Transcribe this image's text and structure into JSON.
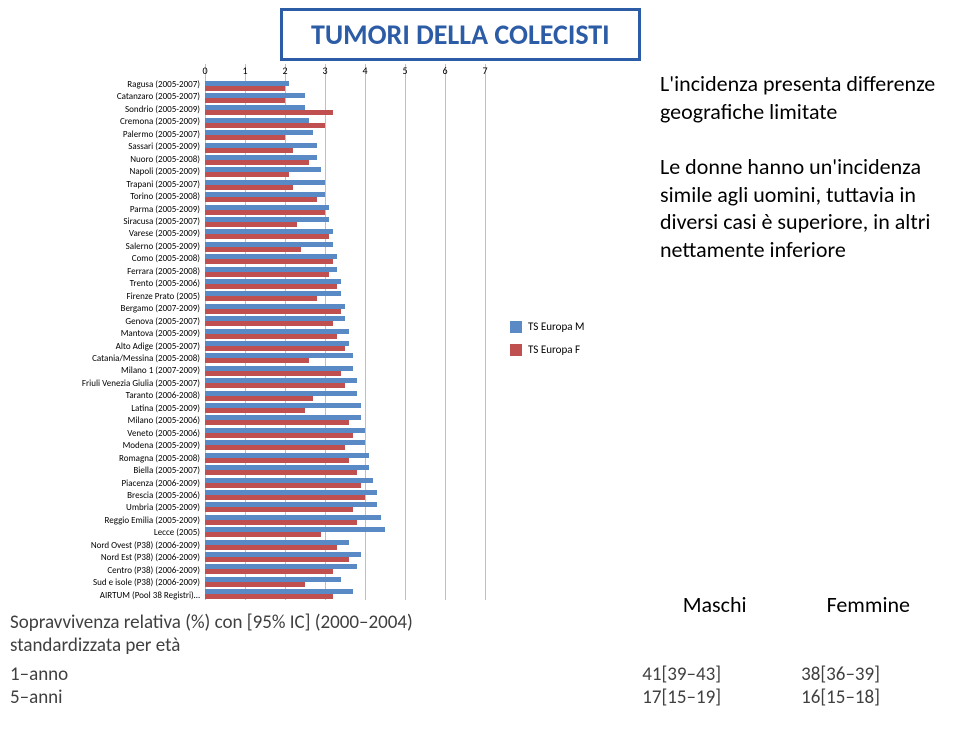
{
  "title": "TUMORI DELLA COLECISTI",
  "chart": {
    "type": "bar",
    "x_axis": {
      "min": 0,
      "max": 7,
      "ticks": [
        0,
        1,
        2,
        3,
        4,
        5,
        6,
        7
      ]
    },
    "grid_color": "#bfbfbf",
    "bar_color_m": "#5a8ac6",
    "bar_color_f": "#c05050",
    "categories": [
      {
        "label": "Ragusa (2005-2007)",
        "m": 2.1,
        "f": 2.0
      },
      {
        "label": "Catanzaro (2005-2007)",
        "m": 2.5,
        "f": 2.0
      },
      {
        "label": "Sondrio (2005-2009)",
        "m": 2.5,
        "f": 3.2
      },
      {
        "label": "Cremona (2005-2009)",
        "m": 2.6,
        "f": 3.0
      },
      {
        "label": "Palermo (2005-2007)",
        "m": 2.7,
        "f": 2.0
      },
      {
        "label": "Sassari (2005-2009)",
        "m": 2.8,
        "f": 2.2
      },
      {
        "label": "Nuoro (2005-2008)",
        "m": 2.8,
        "f": 2.6
      },
      {
        "label": "Napoli (2005-2009)",
        "m": 2.9,
        "f": 2.1
      },
      {
        "label": "Trapani (2005-2007)",
        "m": 3.0,
        "f": 2.2
      },
      {
        "label": "Torino (2005-2008)",
        "m": 3.0,
        "f": 2.8
      },
      {
        "label": "Parma (2005-2009)",
        "m": 3.1,
        "f": 3.0
      },
      {
        "label": "Siracusa (2005-2007)",
        "m": 3.1,
        "f": 2.3
      },
      {
        "label": "Varese (2005-2009)",
        "m": 3.2,
        "f": 3.1
      },
      {
        "label": "Salerno (2005-2009)",
        "m": 3.2,
        "f": 2.4
      },
      {
        "label": "Como (2005-2008)",
        "m": 3.3,
        "f": 3.2
      },
      {
        "label": "Ferrara (2005-2008)",
        "m": 3.3,
        "f": 3.1
      },
      {
        "label": "Trento (2005-2006)",
        "m": 3.4,
        "f": 3.3
      },
      {
        "label": "Firenze Prato (2005)",
        "m": 3.4,
        "f": 2.8
      },
      {
        "label": "Bergamo (2007-2009)",
        "m": 3.5,
        "f": 3.4
      },
      {
        "label": "Genova (2005-2007)",
        "m": 3.5,
        "f": 3.2
      },
      {
        "label": "Mantova (2005-2009)",
        "m": 3.6,
        "f": 3.3
      },
      {
        "label": "Alto Adige (2005-2007)",
        "m": 3.6,
        "f": 3.5
      },
      {
        "label": "Catania/Messina (2005-2008)",
        "m": 3.7,
        "f": 2.6
      },
      {
        "label": "Milano 1 (2007-2009)",
        "m": 3.7,
        "f": 3.4
      },
      {
        "label": "Friuli Venezia Giulia (2005-2007)",
        "m": 3.8,
        "f": 3.5
      },
      {
        "label": "Taranto (2006-2008)",
        "m": 3.8,
        "f": 2.7
      },
      {
        "label": "Latina (2005-2009)",
        "m": 3.9,
        "f": 2.5
      },
      {
        "label": "Milano (2005-2006)",
        "m": 3.9,
        "f": 3.6
      },
      {
        "label": "Veneto (2005-2006)",
        "m": 4.0,
        "f": 3.7
      },
      {
        "label": "Modena (2005-2009)",
        "m": 4.0,
        "f": 3.5
      },
      {
        "label": "Romagna (2005-2008)",
        "m": 4.1,
        "f": 3.6
      },
      {
        "label": "Biella (2005-2007)",
        "m": 4.1,
        "f": 3.8
      },
      {
        "label": "Piacenza (2006-2009)",
        "m": 4.2,
        "f": 3.9
      },
      {
        "label": "Brescia (2005-2006)",
        "m": 4.3,
        "f": 4.0
      },
      {
        "label": "Umbria (2005-2009)",
        "m": 4.3,
        "f": 3.7
      },
      {
        "label": "Reggio Emilia (2005-2009)",
        "m": 4.4,
        "f": 3.8
      },
      {
        "label": "Lecce (2005)",
        "m": 4.5,
        "f": 2.9
      },
      {
        "label": "Nord Ovest (P38) (2006-2009)",
        "m": 3.6,
        "f": 3.3
      },
      {
        "label": "Nord Est (P38) (2006-2009)",
        "m": 3.9,
        "f": 3.6
      },
      {
        "label": "Centro (P38) (2006-2009)",
        "m": 3.8,
        "f": 3.2
      },
      {
        "label": "Sud e isole (P38) (2006-2009)",
        "m": 3.4,
        "f": 2.5
      },
      {
        "label": "AIRTUM (Pool 38 Registri)…",
        "m": 3.7,
        "f": 3.2
      }
    ],
    "legend": [
      {
        "label": "TS Europa  M",
        "color": "#5a8ac6"
      },
      {
        "label": "TS Europa  F",
        "color": "#c05050"
      }
    ]
  },
  "commentary": {
    "p1": "L'incidenza presenta differenze geografiche limitate",
    "p2": "Le donne hanno un'incidenza simile agli uomini, tuttavia in diversi casi è superiore, in altri nettamente inferiore"
  },
  "survival": {
    "header_line1": "Sopravvivenza relativa (%) con [95% IC] (2000–2004)",
    "header_line2": "standardizzata per età",
    "col_m": "Maschi",
    "col_f": "Femmine",
    "rows": [
      {
        "label": "1–anno",
        "m": "41[39–43]",
        "f": "38[36–39]"
      },
      {
        "label": "5–anni",
        "m": "17[15–19]",
        "f": "16[15–18]"
      }
    ]
  }
}
